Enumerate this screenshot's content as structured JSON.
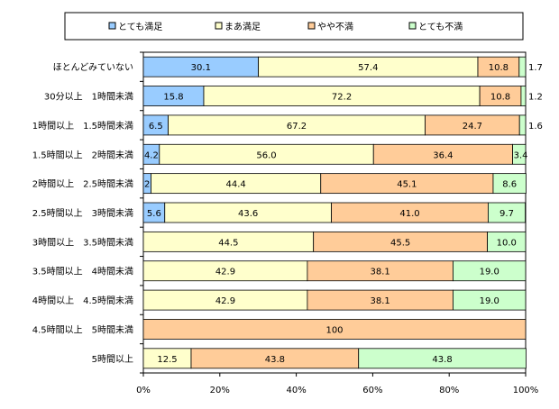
{
  "chart_data": {
    "type": "bar",
    "orientation": "horizontal",
    "stacked": true,
    "percent": true,
    "categories": [
      "ほとんどみていない",
      "30分以上　1時間未満",
      "1時間以上　1.5時間未満",
      "1.5時間以上　2時間未満",
      "2時間以上　2.5時間未満",
      "2.5時間以上　3時間未満",
      "3時間以上　3.5時間未満",
      "3.5時間以上　4時間未満",
      "4時間以上　4.5時間未満",
      "4.5時間以上　5時間未満",
      "5時間以上"
    ],
    "series": [
      {
        "name": "とても満足",
        "color": "#99ccff",
        "values": [
          30.1,
          15.8,
          6.5,
          4.2,
          2.0,
          5.6,
          0,
          0,
          0,
          0,
          0
        ],
        "labels": [
          "30.1",
          "15.8",
          "6.5",
          "4.2",
          "2.0",
          "5.6",
          "",
          "",
          "",
          "",
          ""
        ]
      },
      {
        "name": "まあ満足",
        "color": "#ffffcc",
        "values": [
          57.4,
          72.2,
          67.2,
          56.0,
          44.4,
          43.6,
          44.5,
          42.9,
          42.9,
          0,
          12.5
        ],
        "labels": [
          "57.4",
          "72.2",
          "67.2",
          "56.0",
          "44.4",
          "43.6",
          "44.5",
          "42.9",
          "42.9",
          "",
          "12.5"
        ]
      },
      {
        "name": "やや不満",
        "color": "#ffcc99",
        "values": [
          10.8,
          10.8,
          24.7,
          36.4,
          45.1,
          41.0,
          45.5,
          38.1,
          38.1,
          100,
          43.8
        ],
        "labels": [
          "10.8",
          "10.8",
          "24.7",
          "36.4",
          "45.1",
          "41.0",
          "45.5",
          "38.1",
          "38.1",
          "100",
          "43.8"
        ]
      },
      {
        "name": "とても不満",
        "color": "#ccffcc",
        "values": [
          1.7,
          1.2,
          1.6,
          3.4,
          8.6,
          9.7,
          10.0,
          19.0,
          19.0,
          0,
          43.8
        ],
        "labels": [
          "1.7",
          "1.2",
          "1.6",
          "3.4",
          "8.6",
          "9.7",
          "10.0",
          "19.0",
          "19.0",
          "",
          "43.8"
        ]
      }
    ],
    "xlim": [
      0,
      100
    ],
    "x_ticks": [
      "0%",
      "20%",
      "40%",
      "60%",
      "80%",
      "100%"
    ],
    "legend_position": "top",
    "title": "",
    "xlabel": "",
    "ylabel": ""
  }
}
